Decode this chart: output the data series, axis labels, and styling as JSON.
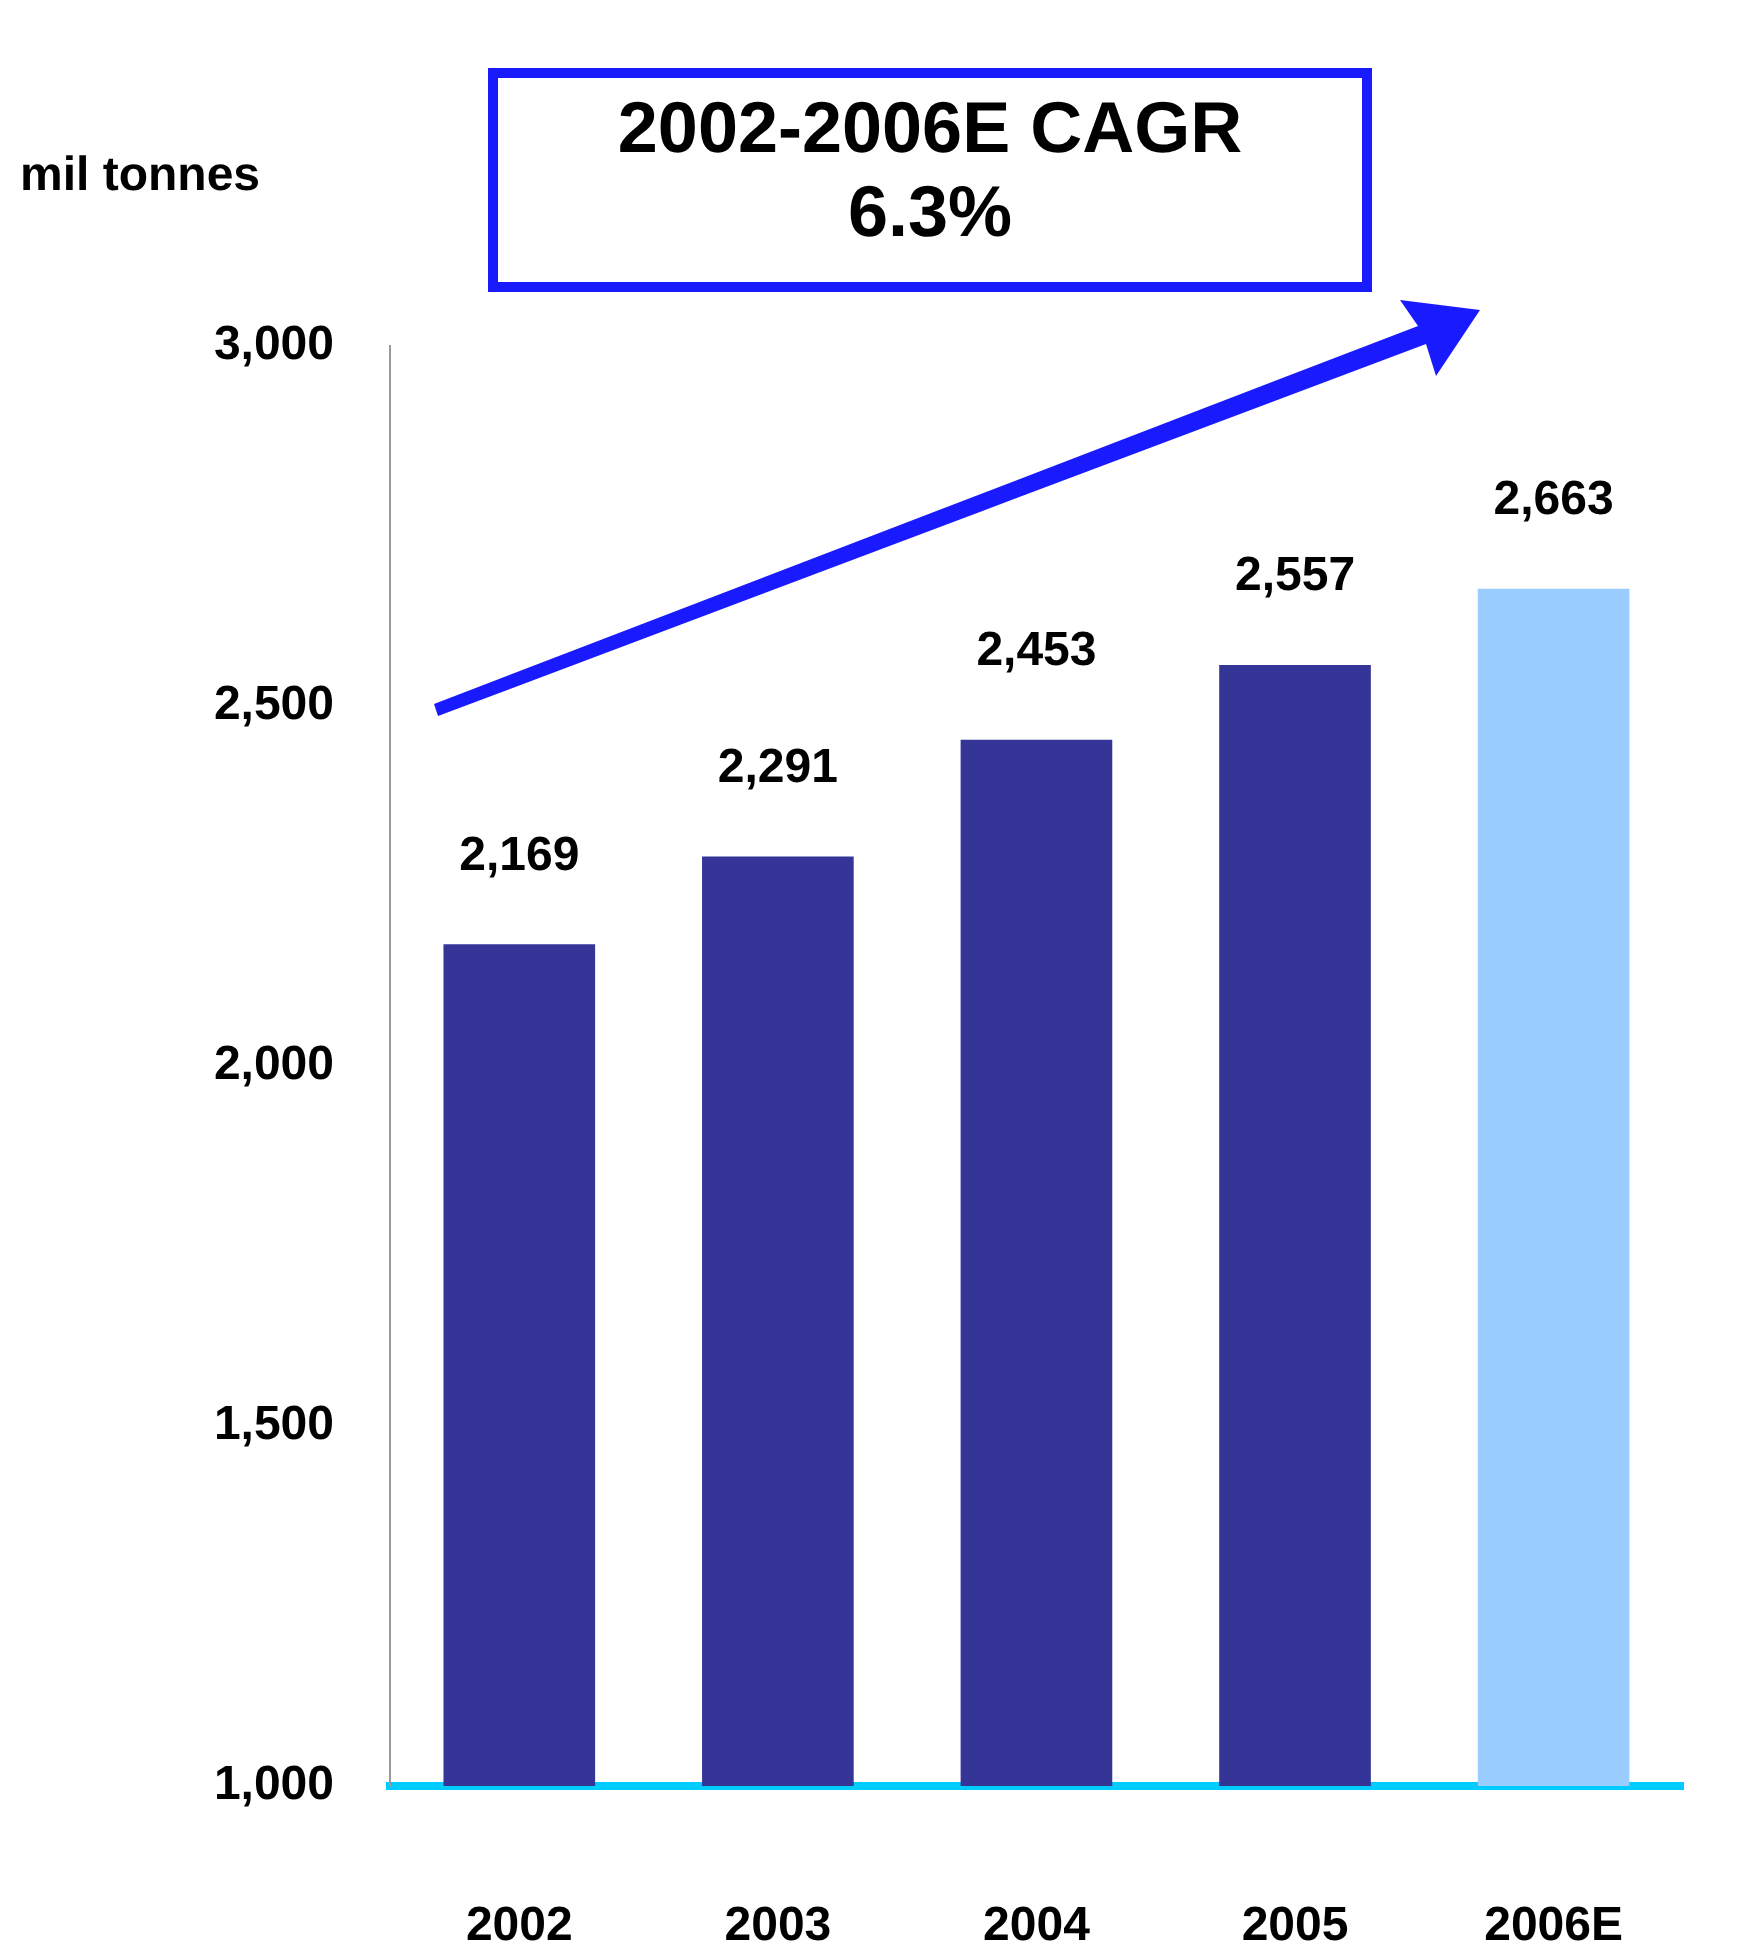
{
  "chart_data": {
    "type": "bar",
    "ylabel": "mil tonnes",
    "categories": [
      "2002",
      "2003",
      "2004",
      "2005",
      "2006E"
    ],
    "values": [
      2169,
      2291,
      2453,
      2557,
      2663
    ],
    "colors": [
      "#353598",
      "#353598",
      "#353598",
      "#353598",
      "#99ccff"
    ],
    "ylim": [
      1000,
      3000
    ],
    "yticks": [
      {
        "value": 1000,
        "label": "1,000"
      },
      {
        "value": 1500,
        "label": "1,500"
      },
      {
        "value": 2000,
        "label": "2,000"
      },
      {
        "value": 2500,
        "label": "2,500"
      },
      {
        "value": 3000,
        "label": "3,000"
      }
    ],
    "value_labels": [
      "2,169",
      "2,291",
      "2,453",
      "2,557",
      "2,663"
    ],
    "annotations": [
      "2002-2006E CAGR\n6.3%"
    ]
  }
}
